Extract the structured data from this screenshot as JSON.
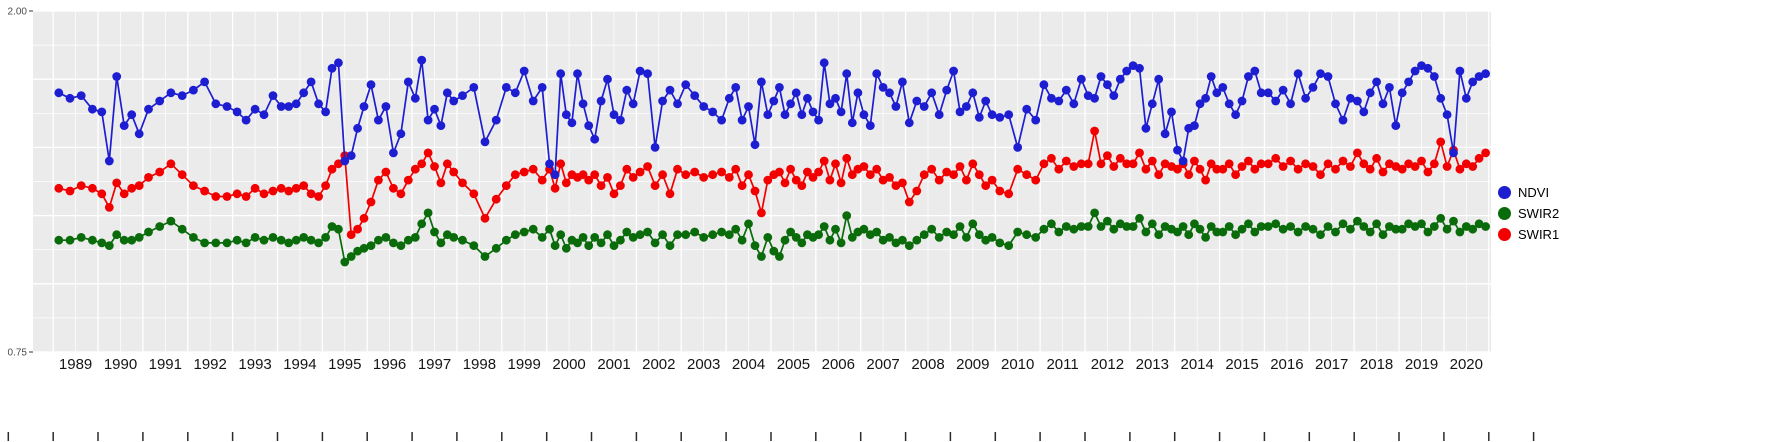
{
  "chart_data": {
    "type": "line",
    "title": "",
    "xlabel": "",
    "ylabel": "",
    "x_unit": "year",
    "x_range": [
      1988.55,
      2021.05
    ],
    "ylim": [
      0.75,
      2.0
    ],
    "grid": true,
    "panel_background": "#ebebeb",
    "grid_color": "#ffffff",
    "y_axis": {
      "labels": [
        {
          "value": 2.0,
          "text": "2.00"
        },
        {
          "value": 0.75,
          "text": "0.75"
        }
      ]
    },
    "xticks": {
      "years": [
        1989,
        1990,
        1991,
        1992,
        1993,
        1994,
        1995,
        1996,
        1997,
        1998,
        1999,
        2000,
        2001,
        2002,
        2003,
        2004,
        2005,
        2006,
        2007,
        2008,
        2009,
        2010,
        2011,
        2012,
        2013,
        2014,
        2015,
        2016,
        2017,
        2018,
        2019,
        2020
      ],
      "labels": [
        "1989",
        "1990",
        "1991",
        "1992",
        "1993",
        "1994",
        "1995",
        "1996",
        "1997",
        "1998",
        "1999",
        "2000",
        "2001",
        "2002",
        "2003",
        "2004",
        "2005",
        "2006",
        "2007",
        "2008",
        "2009",
        "2010",
        "2011",
        "2012",
        "2013",
        "2014",
        "2015",
        "2016",
        "2017",
        "2018",
        "2019",
        "2020"
      ]
    },
    "legend": {
      "position": "right",
      "items": [
        {
          "label": "NDVI",
          "color": "#1d1dd1"
        },
        {
          "label": "SWIR2",
          "color": "#0a6b0a"
        },
        {
          "label": "SWIR1",
          "color": "#f20000"
        }
      ]
    },
    "series": [
      {
        "name": "NDVI",
        "color": "#1d1dd1",
        "values_by_year": {
          "1989": [
            1.7,
            1.68,
            1.69,
            1.64
          ],
          "1990": [
            1.63,
            1.45,
            1.76,
            1.58,
            1.62,
            1.55
          ],
          "1991": [
            1.64,
            1.67,
            1.7,
            1.69
          ],
          "1992": [
            1.71,
            1.74,
            1.66,
            1.65
          ],
          "1993": [
            1.63,
            1.6,
            1.64,
            1.62,
            1.69
          ],
          "1994": [
            1.65,
            1.65,
            1.66,
            1.7,
            1.74,
            1.66
          ],
          "1995": [
            1.63,
            1.79,
            1.81,
            1.45,
            1.47,
            1.57,
            1.65
          ],
          "1996": [
            1.73,
            1.6,
            1.65,
            1.48,
            1.55,
            1.74
          ],
          "1997": [
            1.68,
            1.82,
            1.6,
            1.64,
            1.58,
            1.7,
            1.67
          ],
          "1998": [
            1.69,
            1.72,
            1.52,
            1.6
          ],
          "1999": [
            1.72,
            1.7,
            1.78,
            1.67,
            1.72
          ],
          "2000": [
            1.44,
            1.4,
            1.77,
            1.62,
            1.59,
            1.77,
            1.66,
            1.58
          ],
          "2001": [
            1.53,
            1.67,
            1.75,
            1.62,
            1.6,
            1.71,
            1.66
          ],
          "2002": [
            1.78,
            1.77,
            1.5,
            1.67,
            1.71,
            1.66
          ],
          "2003": [
            1.73,
            1.69,
            1.65,
            1.63,
            1.6
          ],
          "2004": [
            1.68,
            1.72,
            1.6,
            1.65,
            1.51,
            1.74,
            1.62
          ],
          "2005": [
            1.67,
            1.72,
            1.62,
            1.66,
            1.7,
            1.62,
            1.68,
            1.63
          ],
          "2006": [
            1.6,
            1.81,
            1.66,
            1.68,
            1.63,
            1.77,
            1.59,
            1.7
          ],
          "2007": [
            1.62,
            1.58,
            1.77,
            1.72,
            1.7,
            1.65,
            1.74
          ],
          "2008": [
            1.59,
            1.67,
            1.65,
            1.7,
            1.62,
            1.71
          ],
          "2009": [
            1.78,
            1.63,
            1.65,
            1.7,
            1.61,
            1.67,
            1.62
          ],
          "2010": [
            1.61,
            1.62,
            1.5,
            1.64,
            1.6
          ],
          "2011": [
            1.73,
            1.68,
            1.67,
            1.71,
            1.66,
            1.75
          ],
          "2012": [
            1.69,
            1.68,
            1.76,
            1.73,
            1.69,
            1.75,
            1.78
          ],
          "2013": [
            1.8,
            1.79,
            1.57,
            1.66,
            1.75,
            1.55,
            1.63
          ],
          "2014": [
            1.49,
            1.45,
            1.57,
            1.58,
            1.66,
            1.68,
            1.76,
            1.7
          ],
          "2015": [
            1.72,
            1.66,
            1.62,
            1.67,
            1.76,
            1.78,
            1.7
          ],
          "2016": [
            1.7,
            1.67,
            1.71,
            1.66,
            1.77,
            1.68
          ],
          "2017": [
            1.72,
            1.77,
            1.76,
            1.66,
            1.6,
            1.68
          ],
          "2018": [
            1.67,
            1.63,
            1.7,
            1.74,
            1.66,
            1.72,
            1.58
          ],
          "2019": [
            1.7,
            1.74,
            1.78,
            1.8,
            1.79,
            1.76,
            1.68
          ],
          "2020": [
            1.62,
            1.48,
            1.78,
            1.68,
            1.74,
            1.76,
            1.77
          ]
        }
      },
      {
        "name": "SWIR2",
        "color": "#0a6b0a",
        "values_by_year": {
          "1989": [
            1.16,
            1.16,
            1.17,
            1.16
          ],
          "1990": [
            1.15,
            1.14,
            1.18,
            1.16,
            1.16,
            1.17
          ],
          "1991": [
            1.19,
            1.21,
            1.23,
            1.2
          ],
          "1992": [
            1.17,
            1.15,
            1.15,
            1.15
          ],
          "1993": [
            1.16,
            1.15,
            1.17,
            1.16,
            1.17
          ],
          "1994": [
            1.16,
            1.15,
            1.16,
            1.17,
            1.16,
            1.15
          ],
          "1995": [
            1.17,
            1.21,
            1.2,
            1.08,
            1.1,
            1.12,
            1.13
          ],
          "1996": [
            1.14,
            1.16,
            1.17,
            1.15,
            1.14,
            1.16
          ],
          "1997": [
            1.17,
            1.22,
            1.26,
            1.19,
            1.15,
            1.18,
            1.17
          ],
          "1998": [
            1.16,
            1.14,
            1.1,
            1.13
          ],
          "1999": [
            1.16,
            1.18,
            1.19,
            1.2,
            1.17
          ],
          "2000": [
            1.2,
            1.14,
            1.18,
            1.13,
            1.16,
            1.15,
            1.17,
            1.14
          ],
          "2001": [
            1.17,
            1.15,
            1.18,
            1.14,
            1.16,
            1.19,
            1.17
          ],
          "2002": [
            1.18,
            1.19,
            1.15,
            1.18,
            1.14,
            1.18
          ],
          "2003": [
            1.18,
            1.19,
            1.17,
            1.18,
            1.19
          ],
          "2004": [
            1.18,
            1.2,
            1.16,
            1.22,
            1.14,
            1.1,
            1.17
          ],
          "2005": [
            1.12,
            1.1,
            1.16,
            1.19,
            1.17,
            1.15,
            1.18,
            1.17
          ],
          "2006": [
            1.18,
            1.21,
            1.16,
            1.2,
            1.15,
            1.25,
            1.17,
            1.19
          ],
          "2007": [
            1.2,
            1.18,
            1.19,
            1.16,
            1.17,
            1.15,
            1.16
          ],
          "2008": [
            1.14,
            1.16,
            1.18,
            1.2,
            1.17,
            1.19
          ],
          "2009": [
            1.18,
            1.21,
            1.17,
            1.22,
            1.18,
            1.16,
            1.17
          ],
          "2010": [
            1.15,
            1.14,
            1.19,
            1.18,
            1.17
          ],
          "2011": [
            1.2,
            1.22,
            1.19,
            1.21,
            1.2,
            1.21
          ],
          "2012": [
            1.21,
            1.26,
            1.21,
            1.23,
            1.2,
            1.22,
            1.21
          ],
          "2013": [
            1.21,
            1.24,
            1.19,
            1.22,
            1.18,
            1.21,
            1.2
          ],
          "2014": [
            1.19,
            1.21,
            1.18,
            1.22,
            1.2,
            1.17,
            1.21,
            1.19
          ],
          "2015": [
            1.19,
            1.21,
            1.18,
            1.2,
            1.22,
            1.19,
            1.21
          ],
          "2016": [
            1.21,
            1.22,
            1.2,
            1.21,
            1.19,
            1.21
          ],
          "2017": [
            1.2,
            1.18,
            1.21,
            1.19,
            1.22,
            1.2
          ],
          "2018": [
            1.23,
            1.21,
            1.19,
            1.22,
            1.18,
            1.21,
            1.2
          ],
          "2019": [
            1.2,
            1.22,
            1.21,
            1.22,
            1.19,
            1.21,
            1.24
          ],
          "2020": [
            1.2,
            1.23,
            1.19,
            1.21,
            1.2,
            1.22,
            1.21
          ]
        }
      },
      {
        "name": "SWIR1",
        "color": "#f20000",
        "values_by_year": {
          "1989": [
            1.35,
            1.34,
            1.36,
            1.35
          ],
          "1990": [
            1.33,
            1.28,
            1.37,
            1.33,
            1.35,
            1.36
          ],
          "1991": [
            1.39,
            1.41,
            1.44,
            1.4
          ],
          "1992": [
            1.36,
            1.34,
            1.32,
            1.32
          ],
          "1993": [
            1.33,
            1.32,
            1.35,
            1.33,
            1.34
          ],
          "1994": [
            1.35,
            1.34,
            1.35,
            1.36,
            1.33,
            1.32
          ],
          "1995": [
            1.36,
            1.42,
            1.44,
            1.47,
            1.18,
            1.2,
            1.24
          ],
          "1996": [
            1.3,
            1.38,
            1.41,
            1.35,
            1.33,
            1.38
          ],
          "1997": [
            1.42,
            1.44,
            1.48,
            1.43,
            1.37,
            1.44,
            1.41
          ],
          "1998": [
            1.37,
            1.33,
            1.24,
            1.31
          ],
          "1999": [
            1.36,
            1.4,
            1.41,
            1.42,
            1.38
          ],
          "2000": [
            1.42,
            1.35,
            1.44,
            1.37,
            1.4,
            1.39,
            1.4,
            1.38
          ],
          "2001": [
            1.4,
            1.36,
            1.39,
            1.33,
            1.36,
            1.42,
            1.39
          ],
          "2002": [
            1.41,
            1.43,
            1.36,
            1.4,
            1.33,
            1.42
          ],
          "2003": [
            1.4,
            1.41,
            1.39,
            1.4,
            1.41
          ],
          "2004": [
            1.39,
            1.42,
            1.36,
            1.4,
            1.34,
            1.26,
            1.38
          ],
          "2005": [
            1.4,
            1.41,
            1.37,
            1.42,
            1.38,
            1.36,
            1.41,
            1.39
          ],
          "2006": [
            1.41,
            1.45,
            1.38,
            1.44,
            1.37,
            1.46,
            1.4,
            1.42
          ],
          "2007": [
            1.43,
            1.4,
            1.42,
            1.38,
            1.39,
            1.36,
            1.37
          ],
          "2008": [
            1.3,
            1.34,
            1.4,
            1.42,
            1.38,
            1.41
          ],
          "2009": [
            1.4,
            1.43,
            1.38,
            1.44,
            1.4,
            1.36,
            1.38
          ],
          "2010": [
            1.34,
            1.33,
            1.42,
            1.4,
            1.38
          ],
          "2011": [
            1.44,
            1.46,
            1.42,
            1.45,
            1.43,
            1.44
          ],
          "2012": [
            1.44,
            1.56,
            1.44,
            1.47,
            1.43,
            1.46,
            1.44
          ],
          "2013": [
            1.44,
            1.48,
            1.42,
            1.45,
            1.4,
            1.44,
            1.43
          ],
          "2014": [
            1.42,
            1.44,
            1.4,
            1.45,
            1.42,
            1.38,
            1.44,
            1.42
          ],
          "2015": [
            1.42,
            1.44,
            1.4,
            1.43,
            1.45,
            1.42,
            1.44
          ],
          "2016": [
            1.44,
            1.46,
            1.43,
            1.45,
            1.42,
            1.44
          ],
          "2017": [
            1.43,
            1.4,
            1.44,
            1.42,
            1.45,
            1.43
          ],
          "2018": [
            1.48,
            1.44,
            1.42,
            1.46,
            1.41,
            1.44,
            1.43
          ],
          "2019": [
            1.42,
            1.44,
            1.43,
            1.45,
            1.41,
            1.44,
            1.52
          ],
          "2020": [
            1.43,
            1.49,
            1.42,
            1.44,
            1.43,
            1.46,
            1.48
          ]
        }
      }
    ]
  }
}
